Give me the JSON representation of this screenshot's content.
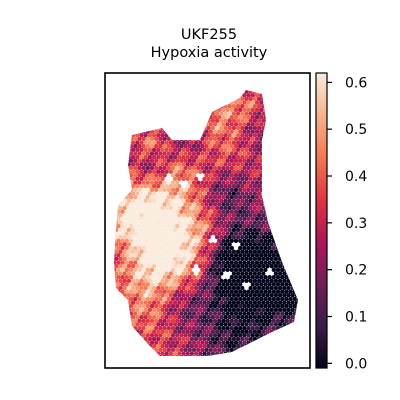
{
  "chart_data": {
    "type": "heatmap",
    "subtype": "spatial-hexbin",
    "title_line1": "UKF255",
    "title_line2": "Hypoxia activity",
    "xlabel": "",
    "ylabel": "",
    "colorbar": {
      "colormap": "rocket",
      "range": [
        -0.01,
        0.62
      ],
      "ticks": [
        0.0,
        0.1,
        0.2,
        0.3,
        0.4,
        0.5,
        0.6
      ],
      "tick_labels": [
        "0.0",
        "0.1",
        "0.2",
        "0.3",
        "0.4",
        "0.5",
        "0.6"
      ]
    },
    "colormap_stops": [
      "#03051a",
      "#3a1c47",
      "#701f57",
      "#ad1759",
      "#e13342",
      "#f37651",
      "#f6b48f",
      "#faebdd"
    ],
    "grid": false,
    "legend": "none",
    "tissue_regions": [
      {
        "description": "low (dark) region lower-right",
        "value": 0.05
      },
      {
        "description": "high (light) region mid-left",
        "value": 0.5
      },
      {
        "description": "upper-right lobe",
        "value": 0.4
      },
      {
        "description": "upper-left lobe",
        "value": 0.35
      },
      {
        "description": "bottom band",
        "value": 0.3
      }
    ]
  }
}
